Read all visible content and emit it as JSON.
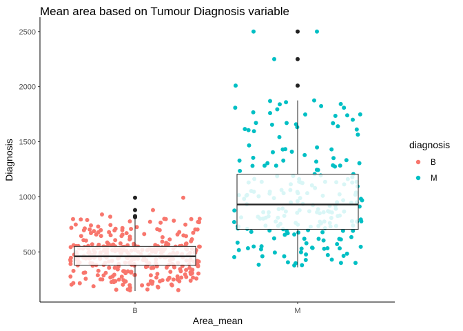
{
  "chart_data": {
    "type": "box",
    "title": "Mean area based on Tumour Diagnosis variable",
    "xlabel": "Area_mean",
    "ylabel": "Diagnosis",
    "ylim": [
      45,
      2630
    ],
    "yticks": [
      500,
      1000,
      1500,
      2000,
      2500
    ],
    "categories": [
      "B",
      "M"
    ],
    "legend": {
      "title": "diagnosis",
      "position": "right",
      "entries": [
        {
          "label": "B",
          "color": "#F8766D"
        },
        {
          "label": "M",
          "color": "#00BFC4"
        }
      ]
    },
    "grid": false,
    "series": [
      {
        "category": "B",
        "color": "#F8766D",
        "box": {
          "whisker_low": 145,
          "q1": 380,
          "median": 460,
          "q3": 550,
          "whisker_high": 800
        },
        "outliers": [
          815,
          825,
          880,
          992
        ],
        "jitter": {
          "n": 357,
          "min": 145,
          "max": 992
        }
      },
      {
        "category": "M",
        "color": "#00BFC4",
        "box": {
          "whisker_low": 360,
          "q1": 705,
          "median": 930,
          "q3": 1205,
          "whisker_high": 1875
        },
        "outliers": [
          2010,
          2250,
          2500
        ],
        "jitter": {
          "n": 212,
          "min": 360,
          "max": 2500
        }
      }
    ]
  }
}
